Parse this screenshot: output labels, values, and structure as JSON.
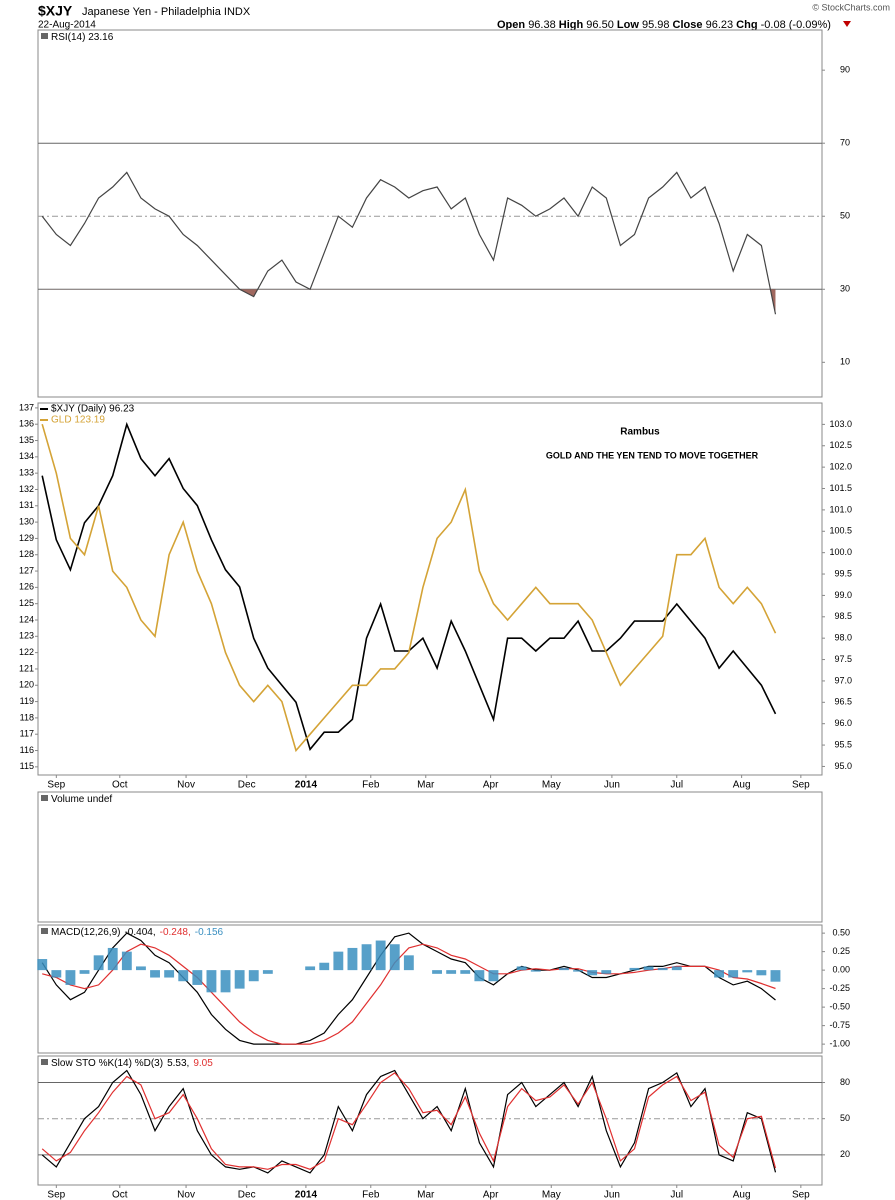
{
  "header": {
    "symbol": "$XJY",
    "name": "Japanese Yen - Philadelphia INDX",
    "date": "22-Aug-2014",
    "copyright": "© StockCharts.com",
    "quotes": [
      {
        "label": "Open",
        "value": "96.38"
      },
      {
        "label": "High",
        "value": "96.50"
      },
      {
        "label": "Low",
        "value": "95.98"
      },
      {
        "label": "Close",
        "value": "96.23"
      },
      {
        "label": "Chg",
        "value": "-0.08 (-0.09%)"
      }
    ]
  },
  "xaxis": {
    "xlim": [
      -0.3,
      55.3
    ],
    "xticks": [
      {
        "value": 1,
        "label": "Sep"
      },
      {
        "value": 5.5,
        "label": "Oct"
      },
      {
        "value": 10.2,
        "label": "Nov"
      },
      {
        "value": 14.5,
        "label": "Dec"
      },
      {
        "value": 18.7,
        "label": "2014"
      },
      {
        "value": 23.3,
        "label": "Feb"
      },
      {
        "value": 27.2,
        "label": "Mar"
      },
      {
        "value": 31.8,
        "label": "Apr"
      },
      {
        "value": 36.1,
        "label": "May"
      },
      {
        "value": 40.4,
        "label": "Jun"
      },
      {
        "value": 45,
        "label": "Jul"
      },
      {
        "value": 49.6,
        "label": "Aug"
      },
      {
        "value": 53.8,
        "label": "Sep"
      }
    ]
  },
  "chart_data": [
    {
      "type": "line",
      "title": "RSI(14) 23.16",
      "ylim": [
        0.5,
        101
      ],
      "yticks": [
        10,
        30,
        50,
        70,
        90
      ],
      "levels": [
        {
          "value": 30,
          "style": "solid"
        },
        {
          "value": 50,
          "style": "dashed"
        },
        {
          "value": 70,
          "style": "solid"
        }
      ],
      "fill_below": 30,
      "fill_color": "#a0685f",
      "series": [
        {
          "color": "#444444",
          "values": [
            50,
            45,
            42,
            48,
            55,
            58,
            62,
            55,
            52,
            50,
            45,
            42,
            38,
            34,
            30,
            28,
            35,
            38,
            32,
            30,
            40,
            50,
            47,
            55,
            60,
            58,
            55,
            57,
            58,
            52,
            55,
            45,
            38,
            55,
            53,
            50,
            52,
            55,
            50,
            58,
            55,
            42,
            45,
            55,
            58,
            62,
            55,
            58,
            48,
            35,
            45,
            42,
            23.16
          ]
        }
      ]
    },
    {
      "type": "line",
      "ylim": [
        114.5,
        137.3
      ],
      "yticks": [
        115,
        116,
        117,
        118,
        119,
        120,
        121,
        122,
        123,
        124,
        125,
        126,
        127,
        128,
        129,
        130,
        131,
        132,
        133,
        134,
        135,
        136,
        137
      ],
      "y2lim": [
        94.8,
        103.5
      ],
      "y2ticks": [
        {
          "value": 95,
          "label": "95.0"
        },
        95.5,
        {
          "value": 96,
          "label": "96.0"
        },
        96.5,
        {
          "value": 97,
          "label": "97.0"
        },
        97.5,
        {
          "value": 98,
          "label": "98.0"
        },
        98.5,
        {
          "value": 99,
          "label": "99.0"
        },
        99.5,
        {
          "value": 100,
          "label": "100.0"
        },
        100.5,
        {
          "value": 101,
          "label": "101.0"
        },
        101.5,
        {
          "value": 102,
          "label": "102.0"
        },
        102.5,
        {
          "value": 103,
          "label": "103.0"
        }
      ],
      "annotations": [
        "Rambus",
        "GOLD AND THE YEN TEND TO MOVE TOGETHER"
      ],
      "series": [
        {
          "name": "$XJY (Daily) 96.23",
          "color": "#000000",
          "axis": "y2",
          "values": [
            101.8,
            100.3,
            99.6,
            100.7,
            101.1,
            101.8,
            103.0,
            102.2,
            101.8,
            102.2,
            101.5,
            101.1,
            100.3,
            99.6,
            99.2,
            98.0,
            97.3,
            96.9,
            96.5,
            95.4,
            95.8,
            95.8,
            96.1,
            98.0,
            98.8,
            97.7,
            97.7,
            98.0,
            97.3,
            98.4,
            97.7,
            96.9,
            96.1,
            98.0,
            98.0,
            97.7,
            98.0,
            98.0,
            98.4,
            97.7,
            97.7,
            98.0,
            98.4,
            98.4,
            98.4,
            98.8,
            98.4,
            98.0,
            97.3,
            97.7,
            97.3,
            96.9,
            96.23
          ]
        },
        {
          "name": "GLD 123.19",
          "color": "#d4a336",
          "values": [
            136,
            133,
            129,
            128,
            131,
            127,
            126,
            124,
            123,
            128,
            130,
            127,
            125,
            122,
            120,
            119,
            120,
            119,
            116,
            117,
            118,
            119,
            120,
            120,
            121,
            121,
            122,
            126,
            129,
            130,
            132,
            127,
            125,
            124,
            125,
            126,
            125,
            125,
            125,
            124,
            122,
            120,
            121,
            122,
            123,
            128,
            128,
            129,
            126,
            125,
            126,
            125,
            123.19
          ]
        }
      ]
    },
    {
      "type": "bar",
      "title": "Volume undef"
    },
    {
      "type": "line",
      "title": "MACD(12,26,9)",
      "ylim": [
        -1.12,
        0.61
      ],
      "yticks": [
        {
          "value": 0.5,
          "label": "0.50"
        },
        0.25,
        {
          "value": 0,
          "label": "0.00"
        },
        -0.25,
        {
          "value": -0.5,
          "label": "-0.50"
        },
        -0.75,
        {
          "value": -1,
          "label": "-1.00"
        }
      ],
      "series": [
        {
          "label": "-0.404,",
          "color": "#000000",
          "values": [
            0.1,
            -0.2,
            -0.4,
            -0.3,
            0.0,
            0.3,
            0.5,
            0.4,
            0.2,
            0.1,
            -0.1,
            -0.3,
            -0.6,
            -0.8,
            -0.95,
            -1.0,
            -1.0,
            -1.0,
            -1.0,
            -0.95,
            -0.85,
            -0.6,
            -0.4,
            -0.1,
            0.2,
            0.45,
            0.5,
            0.35,
            0.25,
            0.15,
            0.1,
            -0.1,
            -0.2,
            -0.05,
            0.05,
            0.0,
            0.0,
            0.05,
            0.0,
            -0.1,
            -0.1,
            -0.05,
            0.0,
            0.05,
            0.05,
            0.1,
            0.05,
            0.05,
            -0.1,
            -0.2,
            -0.15,
            -0.25,
            -0.404
          ]
        },
        {
          "label": "-0.248,",
          "color": "#e03030",
          "values": [
            -0.05,
            -0.1,
            -0.2,
            -0.25,
            -0.2,
            0.0,
            0.25,
            0.35,
            0.3,
            0.2,
            0.05,
            -0.1,
            -0.3,
            -0.5,
            -0.7,
            -0.85,
            -0.95,
            -1.0,
            -1.0,
            -1.0,
            -0.95,
            -0.85,
            -0.7,
            -0.45,
            -0.2,
            0.1,
            0.3,
            0.35,
            0.3,
            0.2,
            0.15,
            0.05,
            -0.05,
            -0.05,
            0.0,
            0.02,
            0.0,
            0.02,
            0.02,
            -0.03,
            -0.05,
            -0.05,
            -0.03,
            0.0,
            0.02,
            0.05,
            0.05,
            0.05,
            0.0,
            -0.1,
            -0.12,
            -0.18,
            -0.248
          ]
        },
        {
          "label": "-0.156",
          "color": "#3a8fc0",
          "type": "bar",
          "values": [
            0.15,
            -0.1,
            -0.2,
            -0.05,
            0.2,
            0.3,
            0.25,
            0.05,
            -0.1,
            -0.1,
            -0.15,
            -0.2,
            -0.3,
            -0.3,
            -0.25,
            -0.15,
            -0.05,
            0,
            0,
            0.05,
            0.1,
            0.25,
            0.3,
            0.35,
            0.4,
            0.35,
            0.2,
            0,
            -0.05,
            -0.05,
            -0.05,
            -0.15,
            -0.15,
            0,
            0.05,
            -0.02,
            0,
            0.03,
            -0.02,
            -0.07,
            -0.05,
            0,
            0.03,
            0.05,
            0.03,
            0.05,
            0,
            0,
            -0.1,
            -0.1,
            -0.03,
            -0.07,
            -0.156
          ]
        }
      ]
    },
    {
      "type": "line",
      "title": "Slow STO %K(14) %D(3)",
      "ylim": [
        -5,
        102
      ],
      "yticks": [
        20,
        50,
        80
      ],
      "levels": [
        {
          "value": 20,
          "style": "solid"
        },
        {
          "value": 50,
          "style": "dashed"
        },
        {
          "value": 80,
          "style": "solid"
        }
      ],
      "series": [
        {
          "label": "5.53,",
          "color": "#000000",
          "values": [
            20,
            10,
            30,
            50,
            60,
            80,
            90,
            70,
            40,
            60,
            75,
            40,
            20,
            10,
            8,
            10,
            5,
            15,
            10,
            5,
            20,
            60,
            40,
            70,
            85,
            90,
            70,
            50,
            60,
            40,
            75,
            30,
            10,
            70,
            80,
            60,
            70,
            80,
            60,
            85,
            40,
            10,
            30,
            75,
            80,
            88,
            60,
            75,
            20,
            15,
            55,
            50,
            5.53
          ]
        },
        {
          "label": "9.05",
          "color": "#e03030",
          "values": [
            25,
            15,
            22,
            40,
            55,
            72,
            85,
            78,
            50,
            55,
            70,
            50,
            25,
            12,
            10,
            10,
            8,
            12,
            12,
            8,
            15,
            50,
            45,
            62,
            80,
            88,
            75,
            55,
            57,
            45,
            68,
            38,
            15,
            60,
            75,
            65,
            68,
            78,
            62,
            80,
            50,
            15,
            25,
            68,
            78,
            85,
            65,
            72,
            28,
            18,
            50,
            52,
            9.05
          ]
        }
      ]
    }
  ]
}
